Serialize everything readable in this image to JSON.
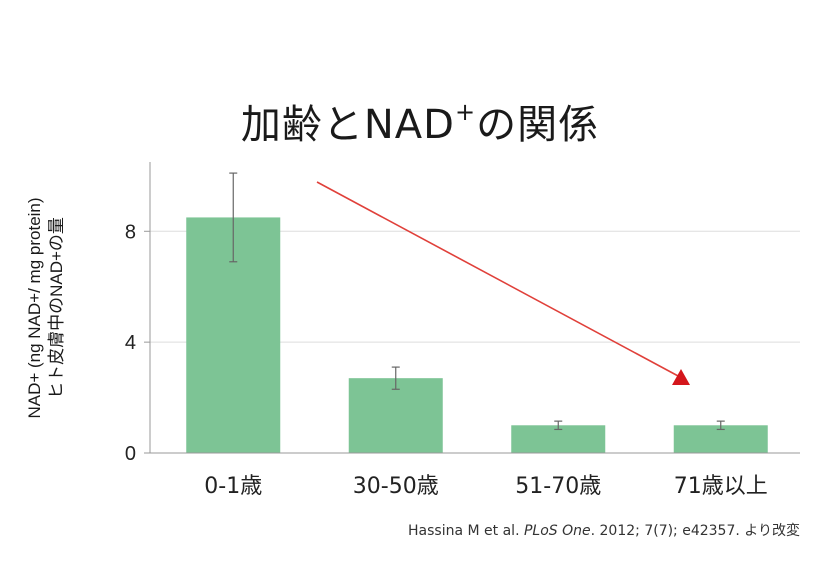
{
  "chart_data": {
    "type": "bar",
    "title_main": "加齢とNAD",
    "title_sup": "+",
    "title_tail": "の関係",
    "ylabel_line1": "NAD+ (ng NAD+/ mg protein)",
    "ylabel_line2": "ヒト皮膚中のNAD+の量",
    "categories": [
      "0-1歳",
      "30-50歳",
      "51-70歳",
      "71歳以上"
    ],
    "values": [
      8.5,
      2.7,
      1.0,
      1.0
    ],
    "errors": [
      1.6,
      0.4,
      0.15,
      0.15
    ],
    "yticks": [
      0,
      4,
      8
    ],
    "ylim": [
      0,
      10.5
    ],
    "grid": true,
    "bar_color": "#7dc495",
    "error_color": "#666666",
    "arrow_color": "#e0403a",
    "grid_color": "#dddddd",
    "axis_color": "#999999"
  },
  "caption": {
    "authors": "Hassina M et al. ",
    "journal": "PLoS One",
    "rest": ". 2012; 7(7); e42357. より改変"
  }
}
